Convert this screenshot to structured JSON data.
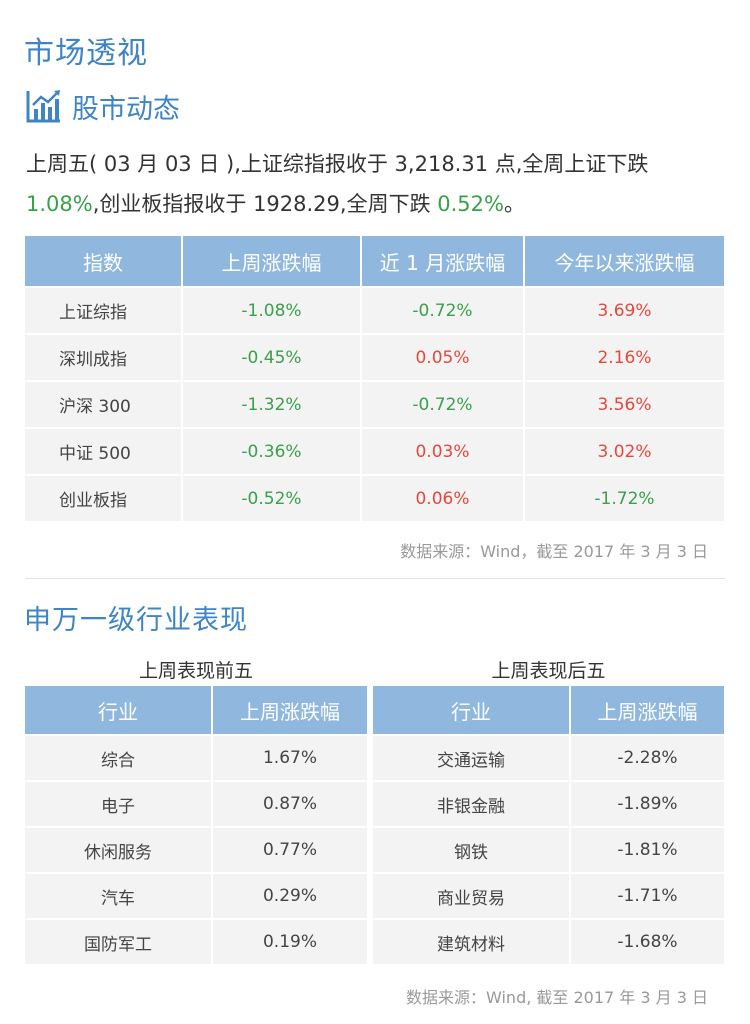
{
  "page": {
    "title": "市场透视"
  },
  "section1": {
    "title": "股市动态",
    "summary_parts": [
      {
        "text": "上周五( 03 月 03 日 ),上证综指报收于 3,218.31 点,全周上证下跌",
        "color": "normal"
      },
      {
        "text": "1.08%",
        "color": "green"
      },
      {
        "text": ",创业板指报收于 1928.29,全周下跌 ",
        "color": "normal"
      },
      {
        "text": "0.52%",
        "color": "green"
      },
      {
        "text": "。",
        "color": "normal"
      }
    ],
    "table": {
      "headers": [
        "指数",
        "上周涨跌幅",
        "近 1 月涨跌幅",
        "今年以来涨跌幅"
      ],
      "rows": [
        {
          "name": "上证综指",
          "cells": [
            {
              "v": "-1.08%",
              "c": "green"
            },
            {
              "v": "-0.72%",
              "c": "green"
            },
            {
              "v": "3.69%",
              "c": "red"
            }
          ]
        },
        {
          "name": "深圳成指",
          "cells": [
            {
              "v": "-0.45%",
              "c": "green"
            },
            {
              "v": "0.05%",
              "c": "red"
            },
            {
              "v": "2.16%",
              "c": "red"
            }
          ]
        },
        {
          "name": "沪深 300",
          "cells": [
            {
              "v": "-1.32%",
              "c": "green"
            },
            {
              "v": "-0.72%",
              "c": "green"
            },
            {
              "v": "3.56%",
              "c": "red"
            }
          ]
        },
        {
          "name": "中证 500",
          "cells": [
            {
              "v": "-0.36%",
              "c": "green"
            },
            {
              "v": "0.03%",
              "c": "red"
            },
            {
              "v": "3.02%",
              "c": "red"
            }
          ]
        },
        {
          "name": "创业板指",
          "cells": [
            {
              "v": "-0.52%",
              "c": "green"
            },
            {
              "v": "0.06%",
              "c": "red"
            },
            {
              "v": "-1.72%",
              "c": "green"
            }
          ]
        }
      ]
    },
    "source": "数据来源：Wind，截至 2017 年 3 月 3 日"
  },
  "section2": {
    "title": "申万一级行业表现",
    "top": {
      "subtitle": "上周表现前五",
      "headers": [
        "行业",
        "上周涨跌幅"
      ],
      "rows": [
        {
          "name": "综合",
          "v": "1.67%",
          "c": "red"
        },
        {
          "name": "电子",
          "v": "0.87%",
          "c": "red"
        },
        {
          "name": "休闲服务",
          "v": "0.77%",
          "c": "red"
        },
        {
          "name": "汽车",
          "v": "0.29%",
          "c": "red"
        },
        {
          "name": "国防军工",
          "v": "0.19%",
          "c": "red"
        }
      ]
    },
    "bottom": {
      "subtitle": "上周表现后五",
      "headers": [
        "行业",
        "上周涨跌幅"
      ],
      "rows": [
        {
          "name": "交通运输",
          "v": "-2.28%",
          "c": "green"
        },
        {
          "name": "非银金融",
          "v": "-1.89%",
          "c": "green"
        },
        {
          "name": "钢铁",
          "v": "-1.81%",
          "c": "green"
        },
        {
          "name": "商业贸易",
          "v": "-1.71%",
          "c": "green"
        },
        {
          "name": "建筑材料",
          "v": "-1.68%",
          "c": "green"
        }
      ]
    },
    "source": "数据来源：Wind, 截至 2017 年 3 月 3 日"
  },
  "colors": {
    "accent": "#3f84c4",
    "header_bg": "#90b7dd",
    "up": "#e5483c",
    "down": "#3aa04a",
    "row_bg": "#f3f3f3"
  },
  "icons": {
    "section1": "bar-chart-trend-icon"
  }
}
